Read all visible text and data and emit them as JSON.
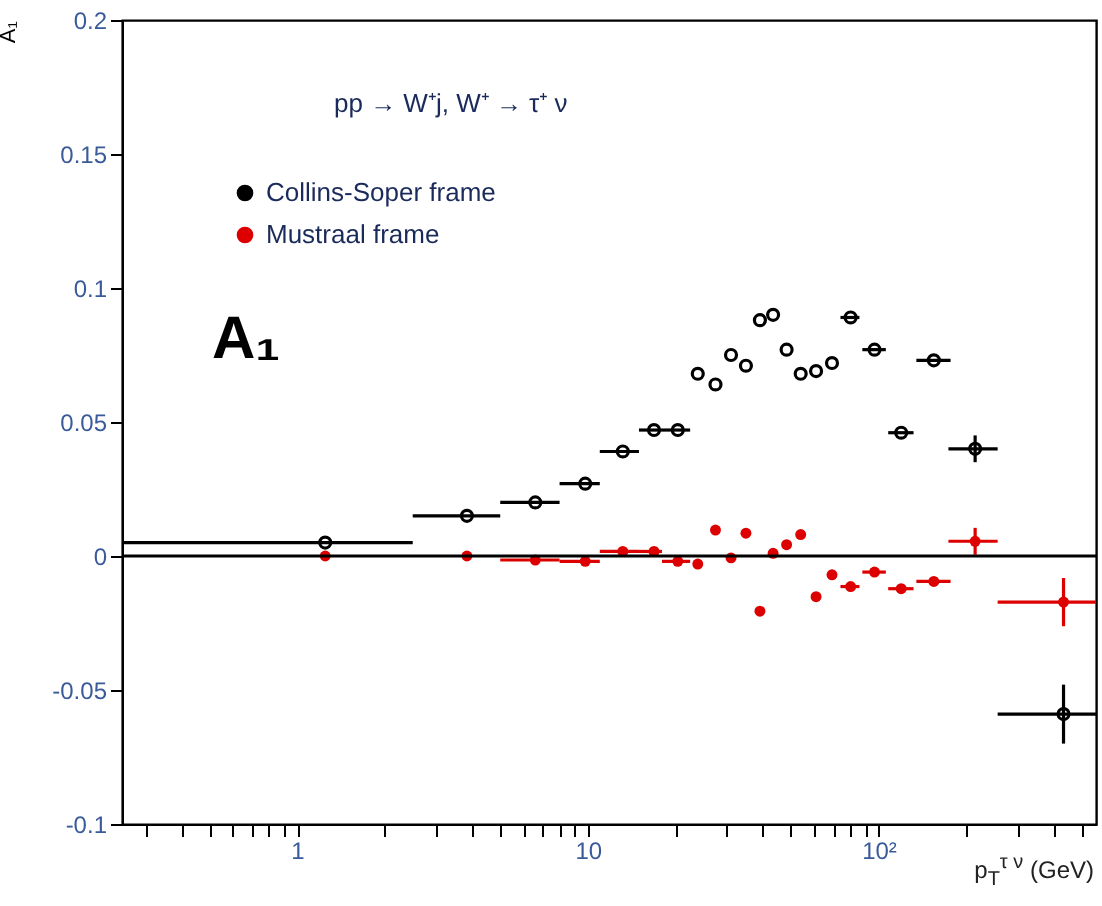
{
  "chart_data": {
    "type": "scatter",
    "xlabel": "p$_{T}$$^{τ ν}$ (GeV)",
    "ylabel": "A₁",
    "annotations": [
      "pp → W⁺j, W⁺ → τ⁺ ν",
      "A₁"
    ],
    "x": [
      1.25,
      3.84,
      6.6,
      9.8,
      13.2,
      16.9,
      20.4,
      23.9,
      27.5,
      31.1,
      35,
      39.1,
      43.4,
      48.3,
      54,
      61,
      69.2,
      80.2,
      96.9,
      119.7,
      155,
      215,
      433
    ],
    "series": [
      {
        "name": "Collins-Soper frame",
        "color": "#000000",
        "values": [
          0.005,
          0.015,
          0.02,
          0.027,
          0.039,
          0.047,
          0.047,
          0.068,
          0.064,
          0.075,
          0.071,
          0.088,
          0.09,
          0.077,
          0.068,
          0.069,
          0.072,
          0.089,
          0.077,
          0.046,
          0.073,
          0.04,
          -0.059
        ],
        "errors": [
          null,
          null,
          null,
          null,
          null,
          null,
          null,
          null,
          null,
          null,
          null,
          null,
          null,
          null,
          null,
          null,
          null,
          null,
          null,
          null,
          null,
          0.005,
          0.011
        ],
        "xerrors": [
          [
            0.25,
            2.5
          ],
          [
            2.5,
            5
          ],
          [
            5,
            8
          ],
          [
            8,
            11
          ],
          [
            11,
            15
          ],
          [
            15,
            18
          ],
          [
            18,
            22.5
          ],
          null,
          null,
          null,
          null,
          null,
          null,
          null,
          null,
          null,
          null,
          [
            74,
            86
          ],
          [
            88,
            106
          ],
          [
            108,
            132
          ],
          [
            135,
            177
          ],
          [
            174,
            257
          ],
          [
            257,
            560
          ]
        ]
      },
      {
        "name": "Mustraal frame",
        "color": "#dd0000",
        "values": [
          0,
          0,
          -0.0015,
          -0.002,
          0.0017,
          0.0017,
          -0.002,
          -0.003,
          0.0097,
          -0.0007,
          0.0085,
          -0.0206,
          0.001,
          0.0042,
          0.008,
          -0.0152,
          -0.007,
          -0.0114,
          -0.006,
          -0.0122,
          -0.0095,
          0.0055,
          -0.0172
        ],
        "errors": [
          null,
          null,
          null,
          null,
          null,
          null,
          null,
          null,
          null,
          null,
          null,
          null,
          null,
          null,
          null,
          null,
          null,
          null,
          null,
          null,
          null,
          0.005,
          0.009
        ],
        "xerrors": [
          null,
          null,
          [
            5,
            8
          ],
          [
            8,
            11
          ],
          [
            11,
            15
          ],
          [
            15,
            18
          ],
          [
            18,
            22.5
          ],
          null,
          null,
          null,
          null,
          null,
          null,
          null,
          null,
          null,
          null,
          [
            74,
            86
          ],
          [
            88,
            106
          ],
          [
            108,
            132
          ],
          [
            135,
            177
          ],
          [
            174,
            257
          ],
          [
            257,
            560
          ]
        ]
      }
    ],
    "ref_lines": [
      {
        "axis": "y",
        "value": 0,
        "color": "#000000"
      }
    ],
    "xlim": [
      0.25,
      560
    ],
    "log": "x",
    "marker": "circle",
    "legend": "top left",
    "grid": false,
    "xticks": [
      {
        "value": 0.3,
        "label": null
      },
      {
        "value": 0.4,
        "label": null
      },
      {
        "value": 0.5,
        "label": null
      },
      {
        "value": 0.6,
        "label": null
      },
      {
        "value": 0.7,
        "label": null
      },
      {
        "value": 0.8,
        "label": null
      },
      {
        "value": 0.9,
        "label": null
      },
      1,
      {
        "value": 2,
        "label": null
      },
      {
        "value": 3,
        "label": null
      },
      {
        "value": 4,
        "label": null
      },
      {
        "value": 5,
        "label": null
      },
      {
        "value": 6,
        "label": null
      },
      {
        "value": 7,
        "label": null
      },
      {
        "value": 8,
        "label": null
      },
      {
        "value": 9,
        "label": null
      },
      10,
      {
        "value": 20,
        "label": null
      },
      {
        "value": 30,
        "label": null
      },
      {
        "value": 40,
        "label": null
      },
      {
        "value": 50,
        "label": null
      },
      {
        "value": 60,
        "label": null
      },
      {
        "value": 70,
        "label": null
      },
      {
        "value": 80,
        "label": null
      },
      {
        "value": 90,
        "label": null
      },
      {
        "value": 100,
        "label": "10²"
      },
      {
        "value": 200,
        "label": null
      },
      {
        "value": 300,
        "label": null
      },
      {
        "value": 400,
        "label": null
      },
      {
        "value": 500,
        "label": null
      }
    ],
    "ylim": [
      -0.1,
      0.2
    ],
    "yticks": [
      -0.1,
      -0.05,
      0,
      0.05,
      0.1,
      0.15,
      0.2
    ]
  }
}
